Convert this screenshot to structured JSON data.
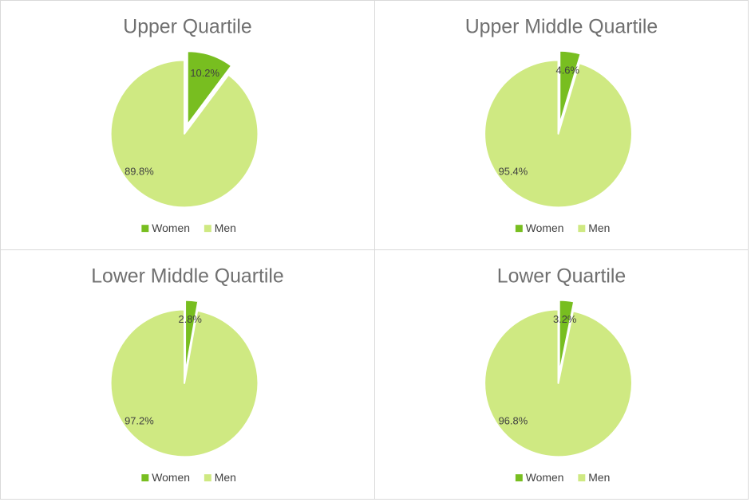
{
  "colors": {
    "women": "#78be20",
    "men": "#cfe982"
  },
  "chart_data": [
    {
      "type": "pie",
      "title": "Upper Quartile",
      "legend": "bottom",
      "series": [
        {
          "name": "Women",
          "value": 10.2,
          "label": "10.2%"
        },
        {
          "name": "Men",
          "value": 89.8,
          "label": "89.8%"
        }
      ]
    },
    {
      "type": "pie",
      "title": "Upper Middle Quartile",
      "legend": "bottom",
      "series": [
        {
          "name": "Women",
          "value": 4.6,
          "label": "4.6%"
        },
        {
          "name": "Men",
          "value": 95.4,
          "label": "95.4%"
        }
      ]
    },
    {
      "type": "pie",
      "title": "Lower Middle Quartile",
      "legend": "bottom",
      "series": [
        {
          "name": "Women",
          "value": 2.8,
          "label": "2.8%"
        },
        {
          "name": "Men",
          "value": 97.2,
          "label": "97.2%"
        }
      ]
    },
    {
      "type": "pie",
      "title": "Lower Quartile",
      "legend": "bottom",
      "series": [
        {
          "name": "Women",
          "value": 3.2,
          "label": "3.2%"
        },
        {
          "name": "Men",
          "value": 96.8,
          "label": "96.8%"
        }
      ]
    }
  ]
}
